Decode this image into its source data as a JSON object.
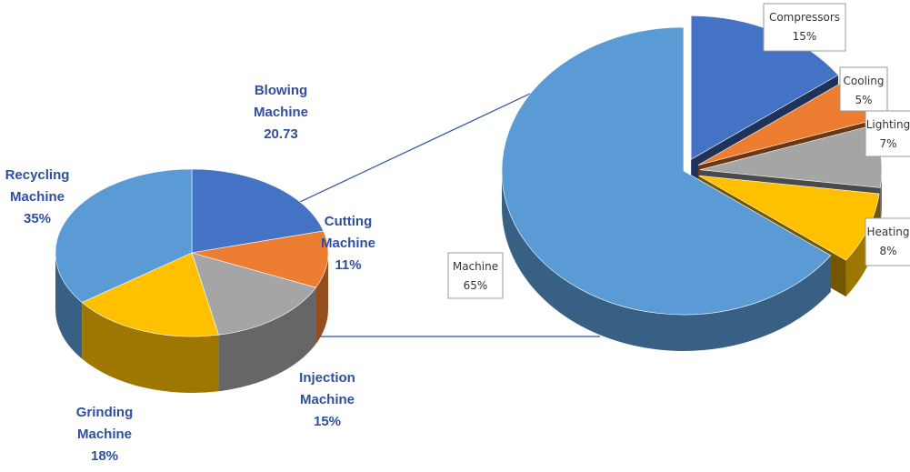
{
  "chart_data": [
    {
      "type": "pie",
      "title": "",
      "slices": [
        {
          "name": "Blowing Machine",
          "label_lines": [
            "Blowing",
            "Machine",
            "20.73"
          ],
          "value": 20.73,
          "color": "#4472c4"
        },
        {
          "name": "Cutting Machine",
          "label_lines": [
            "Cutting",
            "Machine",
            "11%"
          ],
          "value": 11,
          "color": "#ed7d31"
        },
        {
          "name": "Injection Machine",
          "label_lines": [
            "Injection",
            "Machine",
            "15%"
          ],
          "value": 15,
          "color": "#a5a5a5"
        },
        {
          "name": "Grinding Machine",
          "label_lines": [
            "Grinding",
            "Machine",
            "18%"
          ],
          "value": 18,
          "color": "#ffc000"
        },
        {
          "name": "Recycling Machine",
          "label_lines": [
            "Recycling",
            "Machine",
            "35%"
          ],
          "value": 35,
          "color": "#5b9bd5"
        }
      ],
      "legend": "none"
    },
    {
      "type": "pie",
      "title": "",
      "slices": [
        {
          "name": "Compressors",
          "label_lines": [
            "Compressors",
            "15%"
          ],
          "value": 15,
          "color": "#4472c4"
        },
        {
          "name": "Cooling",
          "label_lines": [
            "Cooling",
            "5%"
          ],
          "value": 5,
          "color": "#ed7d31"
        },
        {
          "name": "Lighting",
          "label_lines": [
            "Lighting",
            "7%"
          ],
          "value": 7,
          "color": "#a5a5a5"
        },
        {
          "name": "Heating",
          "label_lines": [
            "Heating",
            "8%"
          ],
          "value": 8,
          "color": "#ffc000"
        },
        {
          "name": "Machine",
          "label_lines": [
            "Machine",
            "65%"
          ],
          "value": 65,
          "color": "#5b9bd5"
        }
      ],
      "legend": "none"
    }
  ],
  "connector_color": "#2f4f9f"
}
